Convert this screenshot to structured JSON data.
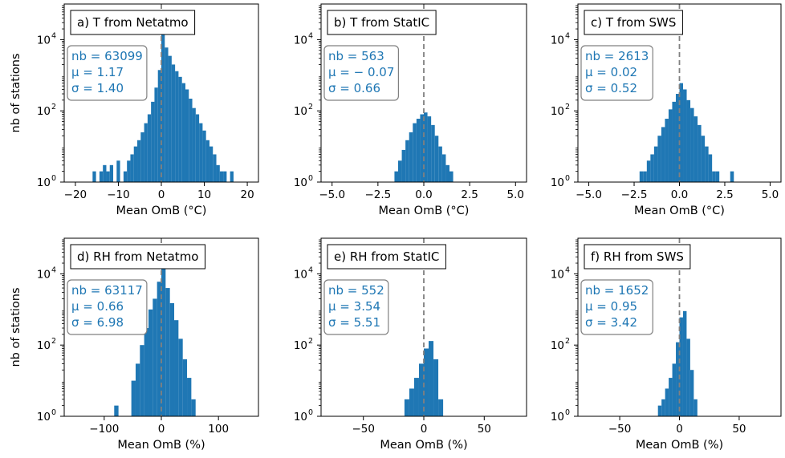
{
  "figure": {
    "ylabel": "nb of stations"
  },
  "chart_data": [
    {
      "type": "bar",
      "title": "a) T from Netatmo",
      "xlabel": "Mean OmB (°C)",
      "ylabel": "nb of stations",
      "yscale": "log",
      "xlim": [
        -22.6,
        22.6
      ],
      "ylim": [
        1,
        100000
      ],
      "xticks": [
        -20,
        -10,
        0,
        10,
        20
      ],
      "xtick_labels": [
        "−20",
        "−10",
        "0",
        "10",
        "20"
      ],
      "yticks": [
        1,
        100,
        10000
      ],
      "ytick_labels": [
        "10",
        "10",
        "10"
      ],
      "ytick_exponents": [
        "0",
        "2",
        "4"
      ],
      "mean_line": 0,
      "stats": {
        "nb": "nb = 63099",
        "mu": "μ = 1.17",
        "sigma": "σ = 1.40"
      },
      "bin_width": 0.8,
      "bins": [
        [
          -16.0,
          2
        ],
        [
          -15.2,
          1
        ],
        [
          -14.4,
          2
        ],
        [
          -13.6,
          3
        ],
        [
          -12.8,
          2
        ],
        [
          -12.0,
          3
        ],
        [
          -11.2,
          1
        ],
        [
          -10.4,
          4
        ],
        [
          -9.6,
          1
        ],
        [
          -8.8,
          2
        ],
        [
          -8.0,
          4
        ],
        [
          -7.2,
          6
        ],
        [
          -6.4,
          10
        ],
        [
          -5.6,
          15
        ],
        [
          -4.8,
          25
        ],
        [
          -4.0,
          45
        ],
        [
          -3.2,
          80
        ],
        [
          -2.4,
          180
        ],
        [
          -1.6,
          450
        ],
        [
          -0.8,
          1400
        ],
        [
          0.0,
          14000
        ],
        [
          0.8,
          6000
        ],
        [
          1.6,
          3500
        ],
        [
          2.4,
          2000
        ],
        [
          3.2,
          1300
        ],
        [
          4.0,
          900
        ],
        [
          4.8,
          600
        ],
        [
          5.6,
          400
        ],
        [
          6.4,
          220
        ],
        [
          7.2,
          120
        ],
        [
          8.0,
          80
        ],
        [
          8.8,
          45
        ],
        [
          9.6,
          28
        ],
        [
          10.4,
          15
        ],
        [
          11.2,
          10
        ],
        [
          12.0,
          6
        ],
        [
          12.8,
          3
        ],
        [
          13.6,
          2
        ],
        [
          14.4,
          2
        ],
        [
          15.2,
          1
        ],
        [
          16.0,
          2
        ]
      ]
    },
    {
      "type": "bar",
      "title": "b) T from StatIC",
      "xlabel": "Mean OmB (°C)",
      "yscale": "log",
      "xlim": [
        -5.6,
        5.6
      ],
      "ylim": [
        1,
        100000
      ],
      "xticks": [
        -5,
        -2.5,
        0,
        2.5,
        5
      ],
      "xtick_labels": [
        "−5.0",
        "−2.5",
        "0.0",
        "2.5",
        "5.0"
      ],
      "yticks": [
        1,
        100,
        10000
      ],
      "ytick_labels": [
        "10",
        "10",
        "10"
      ],
      "ytick_exponents": [
        "0",
        "2",
        "4"
      ],
      "mean_line": 0,
      "stats": {
        "nb": "nb = 563",
        "mu": "μ = − 0.07",
        "sigma": "σ = 0.66"
      },
      "bin_width": 0.2,
      "bins": [
        [
          -1.8,
          1
        ],
        [
          -1.6,
          2
        ],
        [
          -1.4,
          4
        ],
        [
          -1.2,
          8
        ],
        [
          -1.0,
          15
        ],
        [
          -0.8,
          25
        ],
        [
          -0.6,
          45
        ],
        [
          -0.4,
          60
        ],
        [
          -0.2,
          80
        ],
        [
          0.0,
          90
        ],
        [
          0.2,
          70
        ],
        [
          0.4,
          40
        ],
        [
          0.6,
          20
        ],
        [
          0.8,
          10
        ],
        [
          1.0,
          6
        ],
        [
          1.2,
          3
        ],
        [
          1.4,
          2
        ],
        [
          1.6,
          1
        ]
      ]
    },
    {
      "type": "bar",
      "title": "c) T from SWS",
      "xlabel": "Mean OmB (°C)",
      "yscale": "log",
      "xlim": [
        -5.6,
        5.6
      ],
      "ylim": [
        1,
        100000
      ],
      "xticks": [
        -5,
        -2.5,
        0,
        2.5,
        5
      ],
      "xtick_labels": [
        "−5.0",
        "−2.5",
        "0.0",
        "2.5",
        "5.0"
      ],
      "yticks": [
        1,
        100,
        10000
      ],
      "ytick_labels": [
        "10",
        "10",
        "10"
      ],
      "ytick_exponents": [
        "0",
        "2",
        "4"
      ],
      "mean_line": 0,
      "stats": {
        "nb": "nb = 2613",
        "mu": "μ = 0.02",
        "sigma": "σ = 0.52"
      },
      "bin_width": 0.2,
      "bins": [
        [
          -2.2,
          2
        ],
        [
          -2.0,
          2
        ],
        [
          -1.8,
          4
        ],
        [
          -1.6,
          6
        ],
        [
          -1.4,
          10
        ],
        [
          -1.2,
          20
        ],
        [
          -1.0,
          35
        ],
        [
          -0.8,
          60
        ],
        [
          -0.6,
          110
        ],
        [
          -0.4,
          180
        ],
        [
          -0.2,
          300
        ],
        [
          0.0,
          600
        ],
        [
          0.2,
          400
        ],
        [
          0.4,
          200
        ],
        [
          0.6,
          120
        ],
        [
          0.8,
          70
        ],
        [
          1.0,
          40
        ],
        [
          1.2,
          20
        ],
        [
          1.4,
          10
        ],
        [
          1.6,
          6
        ],
        [
          1.8,
          2
        ],
        [
          2.0,
          2
        ],
        [
          2.8,
          2
        ]
      ]
    },
    {
      "type": "bar",
      "title": "d) RH from Netatmo",
      "xlabel": "Mean OmB (%)",
      "ylabel": "nb of stations",
      "yscale": "log",
      "xlim": [
        -170,
        170
      ],
      "ylim": [
        1,
        100000
      ],
      "xticks": [
        -100,
        0,
        100
      ],
      "xtick_labels": [
        "−100",
        "0",
        "100"
      ],
      "yticks": [
        1,
        100,
        10000
      ],
      "ytick_labels": [
        "10",
        "10",
        "10"
      ],
      "ytick_exponents": [
        "0",
        "2",
        "4"
      ],
      "mean_line": 0,
      "stats": {
        "nb": "nb = 63117",
        "mu": "μ = 0.66",
        "sigma": "σ = 6.98"
      },
      "bin_width": 7.5,
      "bins": [
        [
          -82.5,
          2
        ],
        [
          -52.5,
          10
        ],
        [
          -45,
          30
        ],
        [
          -37.5,
          100
        ],
        [
          -30,
          300
        ],
        [
          -22.5,
          1000
        ],
        [
          -15,
          2000
        ],
        [
          -7.5,
          6000
        ],
        [
          0,
          14000
        ],
        [
          7.5,
          4000
        ],
        [
          15,
          1500
        ],
        [
          22.5,
          500
        ],
        [
          30,
          150
        ],
        [
          37.5,
          40
        ],
        [
          45,
          12
        ],
        [
          52.5,
          3
        ]
      ]
    },
    {
      "type": "bar",
      "title": "e) RH from StatIC",
      "xlabel": "Mean OmB (%)",
      "yscale": "log",
      "xlim": [
        -85,
        85
      ],
      "ylim": [
        1,
        100000
      ],
      "xticks": [
        -50,
        0,
        50
      ],
      "xtick_labels": [
        "−50",
        "0",
        "50"
      ],
      "yticks": [
        1,
        100,
        10000
      ],
      "ytick_labels": [
        "10",
        "10",
        "10"
      ],
      "ytick_exponents": [
        "0",
        "2",
        "4"
      ],
      "mean_line": 0,
      "stats": {
        "nb": "nb = 552",
        "mu": "μ = 3.54",
        "sigma": "σ = 5.51"
      },
      "bin_width": 4,
      "bins": [
        [
          -16,
          3
        ],
        [
          -12,
          6
        ],
        [
          -8,
          12
        ],
        [
          -4,
          30
        ],
        [
          0,
          80
        ],
        [
          4,
          130
        ],
        [
          8,
          40
        ],
        [
          12,
          3
        ]
      ]
    },
    {
      "type": "bar",
      "title": "f) RH from SWS",
      "xlabel": "Mean OmB (%)",
      "yscale": "log",
      "xlim": [
        -85,
        85
      ],
      "ylim": [
        1,
        100000
      ],
      "xticks": [
        -50,
        0,
        50
      ],
      "xtick_labels": [
        "−50",
        "0",
        "50"
      ],
      "yticks": [
        1,
        100,
        10000
      ],
      "ytick_labels": [
        "10",
        "10",
        "10"
      ],
      "ytick_exponents": [
        "0",
        "2",
        "4"
      ],
      "mean_line": 0,
      "stats": {
        "nb": "nb = 1652",
        "mu": "μ = 0.95",
        "sigma": "σ = 3.42"
      },
      "bin_width": 3,
      "bins": [
        [
          -18,
          2
        ],
        [
          -15,
          3
        ],
        [
          -12,
          6
        ],
        [
          -9,
          12
        ],
        [
          -6,
          30
        ],
        [
          -3,
          120
        ],
        [
          0,
          600
        ],
        [
          3,
          900
        ],
        [
          6,
          150
        ],
        [
          9,
          20
        ],
        [
          12,
          3
        ]
      ]
    }
  ]
}
